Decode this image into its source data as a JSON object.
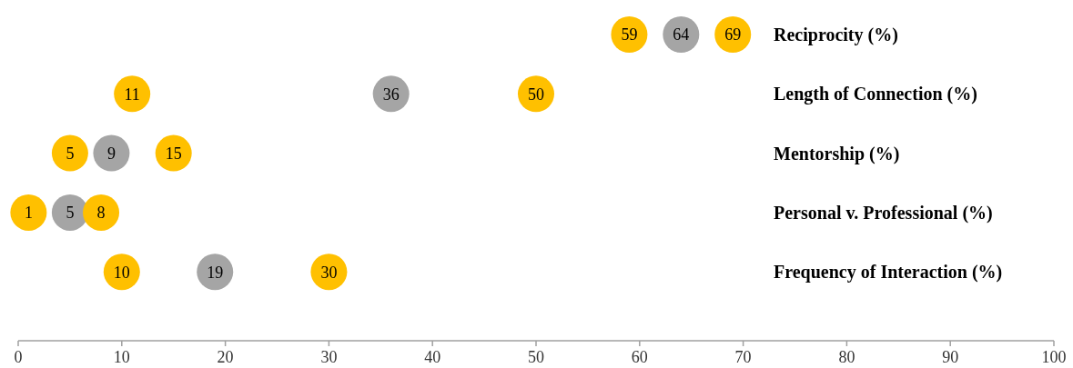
{
  "chart_data": {
    "type": "scatter",
    "orientation": "horizontal",
    "categories": [
      "Reciprocity (%)",
      "Length of Connection (%)",
      "Mentorship (%)",
      "Personal v. Professional (%)",
      "Frequency of Interaction (%)"
    ],
    "series": [
      {
        "color": "#ffc000",
        "values": [
          59,
          11,
          5,
          1,
          10
        ]
      },
      {
        "color": "#a5a5a5",
        "values": [
          64,
          36,
          9,
          5,
          19
        ]
      },
      {
        "color": "#ffc000",
        "values": [
          69,
          50,
          15,
          8,
          30
        ]
      }
    ],
    "xlim": [
      0,
      100
    ],
    "xticks": [
      0,
      10,
      20,
      30,
      40,
      50,
      60,
      70,
      80,
      90,
      100
    ],
    "data_labels": true,
    "marker": "circle"
  }
}
